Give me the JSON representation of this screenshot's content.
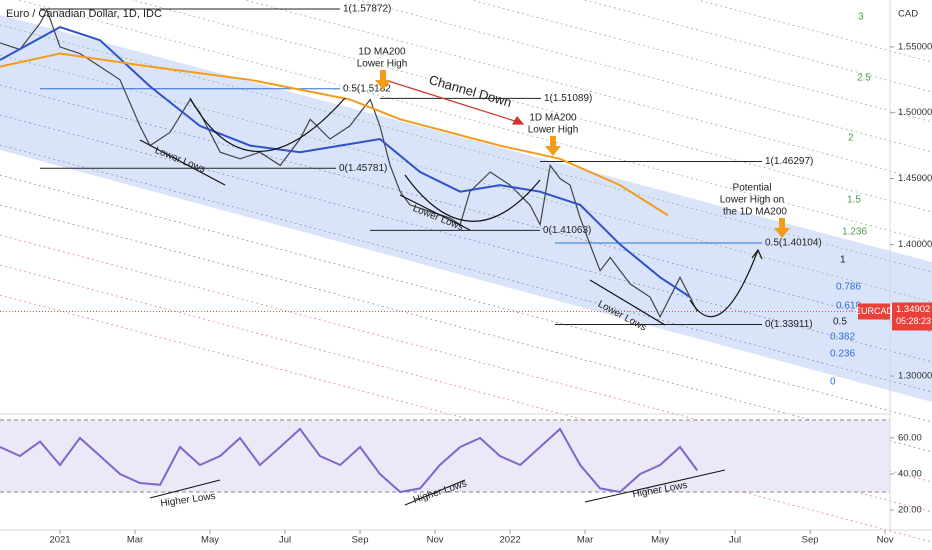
{
  "chart_data": [
    {
      "type": "line",
      "title": "Euro / Canadian Dollar, 1D, IDC",
      "xlim": [
        -1.6,
        22.13
      ],
      "xticks": [
        {
          "value": 0,
          "label": "2021"
        },
        {
          "value": 2,
          "label": "Mar"
        },
        {
          "value": 4,
          "label": "May"
        },
        {
          "value": 6,
          "label": "Jul"
        },
        {
          "value": 8,
          "label": "Sep"
        },
        {
          "value": 10,
          "label": "Nov"
        },
        {
          "value": 12,
          "label": "2022"
        },
        {
          "value": 14,
          "label": "Mar"
        },
        {
          "value": 16,
          "label": "May"
        },
        {
          "value": 18,
          "label": "Jul"
        },
        {
          "value": 20,
          "label": "Sep"
        },
        {
          "value": 22,
          "label": "Nov"
        }
      ],
      "ylim": [
        1.2742,
        1.5856
      ],
      "yticks": [
        {
          "value": 1.55,
          "label": "1.55000"
        },
        {
          "value": 1.5,
          "label": "1.50000"
        },
        {
          "value": 1.45,
          "label": "1.45000"
        },
        {
          "value": 1.4,
          "label": "1.40000"
        },
        {
          "value": 1.3,
          "label": "1.30000"
        }
      ],
      "axis_unit": "CAD",
      "symbol": "EURCAD",
      "last_price": 1.34902,
      "countdown": "05:28:23",
      "series": [
        {
          "color": "#444444",
          "x": [
            -1.6,
            -1.07,
            -0.53,
            -0.35,
            0,
            0.53,
            1.07,
            1.6,
            2.13,
            2.4,
            2.93,
            3.47,
            3.73,
            4.27,
            4.8,
            5.33,
            5.87,
            6.4,
            6.67,
            7.2,
            7.73,
            8.27,
            8.53,
            8.8,
            9.07,
            9.33,
            9.87,
            10.4,
            10.67,
            10.93,
            11.47,
            12,
            12.53,
            12.8,
            13.07,
            13.33,
            13.6,
            13.87,
            14.13,
            14.4,
            14.67,
            15.2,
            15.73,
            16,
            16.53,
            16.8,
            16.99
          ],
          "values": [
            1.553,
            1.548,
            1.568,
            1.578,
            1.55,
            1.545,
            1.535,
            1.525,
            1.49,
            1.475,
            1.485,
            1.51,
            1.5,
            1.47,
            1.465,
            1.47,
            1.46,
            1.48,
            1.495,
            1.48,
            1.49,
            1.51,
            1.49,
            1.46,
            1.44,
            1.43,
            1.425,
            1.42,
            1.415,
            1.44,
            1.455,
            1.445,
            1.43,
            1.415,
            1.46,
            1.45,
            1.445,
            1.42,
            1.4,
            1.38,
            1.39,
            1.37,
            1.36,
            1.345,
            1.375,
            1.36,
            1.349
          ]
        },
        {
          "color": "#2f52c8",
          "x": [
            -1.6,
            0,
            1.07,
            2.4,
            3.73,
            5.07,
            6.4,
            7.47,
            8.53,
            9.6,
            10.67,
            11.73,
            12.8,
            13.87,
            14.93,
            16,
            16.8
          ],
          "values": [
            1.54,
            1.565,
            1.555,
            1.52,
            1.49,
            1.475,
            1.47,
            1.475,
            1.48,
            1.455,
            1.44,
            1.445,
            1.44,
            1.43,
            1.4,
            1.375,
            1.36
          ]
        },
        {
          "color": "#f59b1c",
          "x": [
            -1.6,
            0,
            2.4,
            5.07,
            7.73,
            9.07,
            11.73,
            13.33,
            14.93,
            16.21
          ],
          "values": [
            1.535,
            1.545,
            1.535,
            1.525,
            1.51,
            1.495,
            1.475,
            1.465,
            1.445,
            1.422
          ]
        }
      ],
      "levels": [
        {
          "label": "1(1.57872)",
          "value": 1.57872,
          "color": "#222222"
        },
        {
          "label": "0.5(1.5182",
          "value": 1.5182,
          "color": "#2f6fd8"
        },
        {
          "label": "0(1.45781)",
          "value": 1.45781,
          "color": "#222222"
        },
        {
          "label": "1(1.51089)",
          "value": 1.51089,
          "color": "#222222"
        },
        {
          "label": "1(1.46297)",
          "value": 1.46297,
          "color": "#222222"
        },
        {
          "label": "0(1.41063)",
          "value": 1.41063,
          "color": "#222222"
        },
        {
          "label": "0.5(1.40104)",
          "value": 1.40104,
          "color": "#2f6fd8"
        },
        {
          "label": "0(1.33911)",
          "value": 1.33911,
          "color": "#222222"
        }
      ],
      "channel_levels": [
        "3",
        "2.5",
        "2",
        "1.5",
        "1.236",
        "1",
        "0.786",
        "0.618",
        "0.5",
        "0.382",
        "0.236",
        "0"
      ],
      "annotations": [
        "1D MA200",
        "Lower High",
        "Channel Down",
        "1D MA200",
        "Lower High",
        "Lower Lows",
        "Lower Lows",
        "Lower Lows",
        "Potential",
        "Lower High on",
        "the 1D MA200"
      ]
    },
    {
      "type": "line",
      "ylim": [
        11.7,
        70
      ],
      "yticks": [
        {
          "value": 60,
          "label": "60.00"
        },
        {
          "value": 40,
          "label": "40.00"
        },
        {
          "value": 20,
          "label": "20.00"
        }
      ],
      "levels": [
        30,
        70
      ],
      "series": [
        {
          "color": "#7b68c8",
          "x": [
            -1.6,
            -1.07,
            -0.53,
            0,
            0.53,
            1.07,
            1.6,
            2.13,
            2.67,
            3.2,
            3.73,
            4.27,
            4.8,
            5.33,
            5.87,
            6.4,
            6.93,
            7.47,
            8,
            8.53,
            9.07,
            9.6,
            10.13,
            10.67,
            11.2,
            11.73,
            12.27,
            12.8,
            13.33,
            13.87,
            14.4,
            14.93,
            15.47,
            16,
            16.53,
            16.99
          ],
          "values": [
            55,
            50,
            58,
            45,
            60,
            50,
            40,
            35,
            34,
            55,
            45,
            50,
            60,
            45,
            55,
            65,
            50,
            45,
            55,
            40,
            30,
            32,
            45,
            55,
            60,
            50,
            45,
            55,
            65,
            45,
            32,
            30,
            40,
            45,
            55,
            42
          ]
        }
      ],
      "annotations": [
        "Higher Lows",
        "Higher Lows",
        "Higher Lows"
      ]
    }
  ]
}
